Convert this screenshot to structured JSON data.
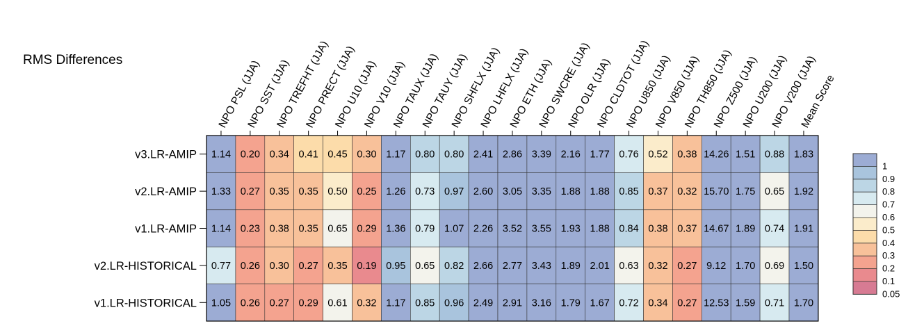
{
  "chart_data": {
    "type": "heatmap",
    "title": "RMS Differences",
    "columns": [
      "NPO PSL (JJA)",
      "NPO SST (JJA)",
      "NPO TREFHT (JJA)",
      "NPO PRECT (JJA)",
      "NPO U10 (JJA)",
      "NPO V10 (JJA)",
      "NPO TAUX (JJA)",
      "NPO TAUY (JJA)",
      "NPO SHFLX (JJA)",
      "NPO LHFLX (JJA)",
      "NPO ETH (JJA)",
      "NPO SWCRE (JJA)",
      "NPO OLR (JJA)",
      "NPO CLDTOT (JJA)",
      "NPO U850 (JJA)",
      "NPO V850 (JJA)",
      "NPO TH850 (JJA)",
      "NPO Z500 (JJA)",
      "NPO U200 (JJA)",
      "NPO V200 (JJA)",
      "Mean Score"
    ],
    "rows": [
      "v3.LR-AMIP",
      "v2.LR-AMIP",
      "v1.LR-AMIP",
      "v2.LR-HISTORICAL",
      "v1.LR-HISTORICAL"
    ],
    "values": [
      [
        "1.14",
        "0.20",
        "0.34",
        "0.41",
        "0.45",
        "0.30",
        "1.17",
        "0.80",
        "0.80",
        "2.41",
        "2.86",
        "3.39",
        "2.16",
        "1.77",
        "0.76",
        "0.52",
        "0.38",
        "14.26",
        "1.51",
        "0.88",
        "1.83"
      ],
      [
        "1.33",
        "0.27",
        "0.35",
        "0.35",
        "0.50",
        "0.25",
        "1.26",
        "0.73",
        "0.97",
        "2.60",
        "3.05",
        "3.35",
        "1.88",
        "1.88",
        "0.85",
        "0.37",
        "0.32",
        "15.70",
        "1.75",
        "0.65",
        "1.92"
      ],
      [
        "1.14",
        "0.23",
        "0.38",
        "0.35",
        "0.65",
        "0.29",
        "1.36",
        "0.79",
        "1.07",
        "2.26",
        "3.52",
        "3.55",
        "1.93",
        "1.88",
        "0.84",
        "0.38",
        "0.37",
        "14.67",
        "1.89",
        "0.74",
        "1.91"
      ],
      [
        "0.77",
        "0.26",
        "0.30",
        "0.27",
        "0.35",
        "0.19",
        "0.95",
        "0.65",
        "0.82",
        "2.66",
        "2.77",
        "3.43",
        "1.89",
        "2.01",
        "0.63",
        "0.32",
        "0.27",
        "9.12",
        "1.70",
        "0.69",
        "1.50"
      ],
      [
        "1.05",
        "0.26",
        "0.27",
        "0.29",
        "0.61",
        "0.32",
        "1.17",
        "0.85",
        "0.96",
        "2.49",
        "2.91",
        "3.16",
        "1.79",
        "1.67",
        "0.72",
        "0.34",
        "0.27",
        "12.53",
        "1.59",
        "0.71",
        "1.70"
      ]
    ],
    "colorbar": {
      "labels": [
        "1",
        "0.9",
        "0.8",
        "0.7",
        "0.6",
        "0.5",
        "0.4",
        "0.3",
        "0.2",
        "0.1",
        "0.05"
      ],
      "colors": [
        "#9cacd4",
        "#a9c4dd",
        "#bcd6e5",
        "#d7eaf0",
        "#f3f3ec",
        "#fbeccb",
        "#fcdcaa",
        "#f8c19a",
        "#f4a38f",
        "#e98a8e",
        "#d77b93"
      ],
      "levels": [
        0.05,
        0.1,
        0.2,
        0.3,
        0.4,
        0.5,
        0.6,
        0.7,
        0.8,
        0.9,
        1.0
      ]
    }
  }
}
